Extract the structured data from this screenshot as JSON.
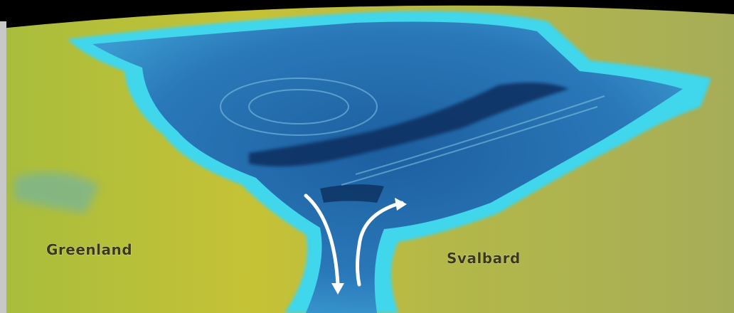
{
  "labels": {
    "greenland": "Greenland",
    "svalbard": "Svalbard"
  }
}
